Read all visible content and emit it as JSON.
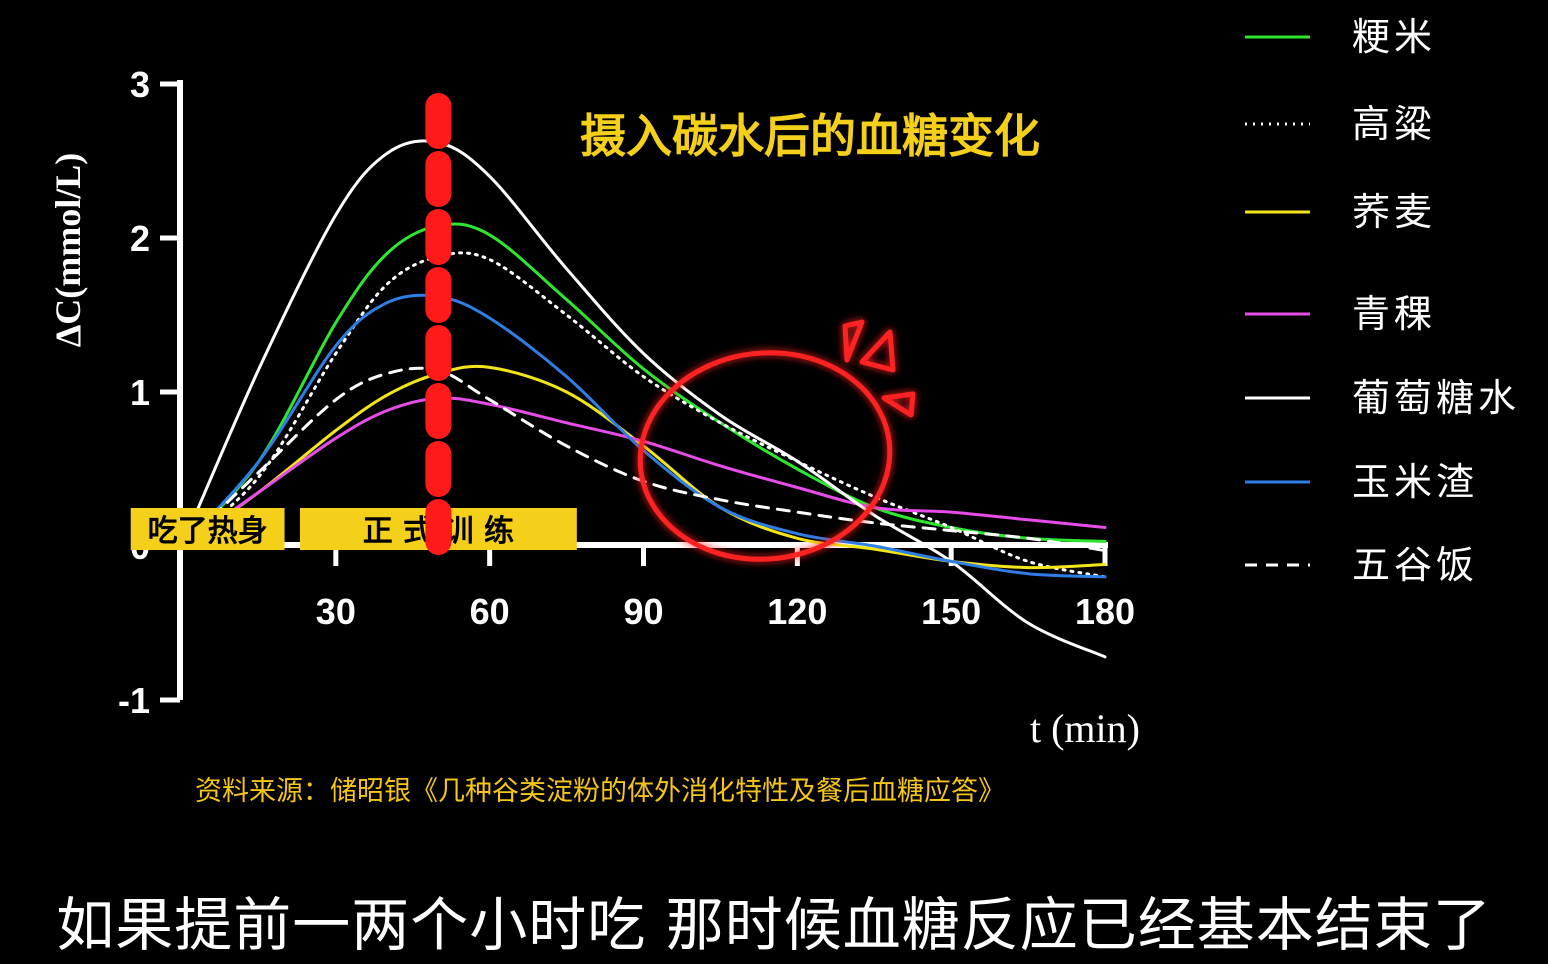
{
  "chart_data": {
    "type": "line",
    "title": "摄入碳水后的血糖变化",
    "xlabel": "t (min)",
    "ylabel": "ΔC(mmol/L)",
    "xlim": [
      0,
      180
    ],
    "ylim": [
      -1,
      3
    ],
    "xticks": [
      30,
      60,
      90,
      120,
      150,
      180
    ],
    "yticks": [
      -1,
      0,
      1,
      2,
      3
    ],
    "xtick_labels": [
      "30",
      "60",
      "90",
      "120",
      "150",
      "180"
    ],
    "ytick_labels": [
      "-1",
      "0",
      "1",
      "2",
      "3"
    ],
    "marker_line": {
      "x": 50,
      "color": "#ff1a1a",
      "style": "dashed"
    },
    "phases": [
      {
        "label": "吃了热身",
        "x_start": -10,
        "x_end": 20
      },
      {
        "label": "正 式 训 练",
        "x_start": 23,
        "x_end": 77
      }
    ],
    "series": [
      {
        "name": "粳米",
        "color": "#2ee62e",
        "style": "solid",
        "x": [
          0,
          15,
          30,
          40,
          50,
          60,
          75,
          90,
          105,
          120,
          135,
          150,
          165,
          180
        ],
        "y": [
          0,
          0.55,
          1.45,
          1.9,
          2.08,
          2.02,
          1.6,
          1.15,
          0.8,
          0.5,
          0.25,
          0.12,
          0.05,
          0.03
        ]
      },
      {
        "name": "高粱",
        "color": "#ffffff",
        "style": "dotted",
        "x": [
          0,
          15,
          30,
          40,
          50,
          60,
          75,
          90,
          105,
          120,
          135,
          150,
          165,
          180
        ],
        "y": [
          0,
          0.45,
          1.25,
          1.7,
          1.88,
          1.86,
          1.5,
          1.1,
          0.8,
          0.55,
          0.32,
          0.12,
          -0.1,
          -0.2
        ]
      },
      {
        "name": "荞麦",
        "color": "#f2e51a",
        "style": "solid",
        "x": [
          0,
          15,
          30,
          40,
          50,
          60,
          75,
          90,
          105,
          120,
          135,
          150,
          165,
          180
        ],
        "y": [
          0,
          0.35,
          0.75,
          0.98,
          1.12,
          1.16,
          1.0,
          0.65,
          0.25,
          0.05,
          -0.02,
          -0.1,
          -0.14,
          -0.12
        ]
      },
      {
        "name": "青稞",
        "color": "#e64ce6",
        "style": "solid",
        "x": [
          0,
          15,
          30,
          40,
          50,
          60,
          75,
          90,
          105,
          120,
          135,
          150,
          165,
          180
        ],
        "y": [
          0,
          0.35,
          0.7,
          0.88,
          0.96,
          0.92,
          0.8,
          0.68,
          0.52,
          0.38,
          0.25,
          0.22,
          0.17,
          0.12
        ]
      },
      {
        "name": "葡萄糖水",
        "color": "#ffffff",
        "style": "solid",
        "x": [
          0,
          15,
          30,
          40,
          50,
          60,
          75,
          90,
          105,
          120,
          135,
          150,
          165,
          180
        ],
        "y": [
          0,
          1.15,
          2.15,
          2.55,
          2.62,
          2.4,
          1.8,
          1.25,
          0.85,
          0.55,
          0.2,
          -0.1,
          -0.5,
          -0.72
        ]
      },
      {
        "name": "玉米渣",
        "color": "#2f7ee6",
        "style": "solid",
        "x": [
          0,
          15,
          30,
          40,
          50,
          60,
          75,
          90,
          105,
          120,
          135,
          150,
          165,
          180
        ],
        "y": [
          0,
          0.55,
          1.3,
          1.58,
          1.62,
          1.48,
          1.1,
          0.62,
          0.25,
          0.08,
          0.0,
          -0.1,
          -0.18,
          -0.2
        ]
      },
      {
        "name": "五谷饭",
        "color": "#ffffff",
        "style": "dashed",
        "x": [
          0,
          15,
          30,
          40,
          50,
          60,
          75,
          90,
          105,
          120,
          135,
          150,
          165,
          180
        ],
        "y": [
          0,
          0.48,
          0.95,
          1.12,
          1.14,
          0.95,
          0.65,
          0.42,
          0.3,
          0.22,
          0.15,
          0.1,
          0.05,
          -0.03
        ]
      }
    ],
    "source": "资料来源：储昭银《几种谷类淀粉的体外消化特性及餐后血糖应答》"
  },
  "subtitle": "如果提前一两个小时吃 那时候血糖反应已经基本结束了"
}
